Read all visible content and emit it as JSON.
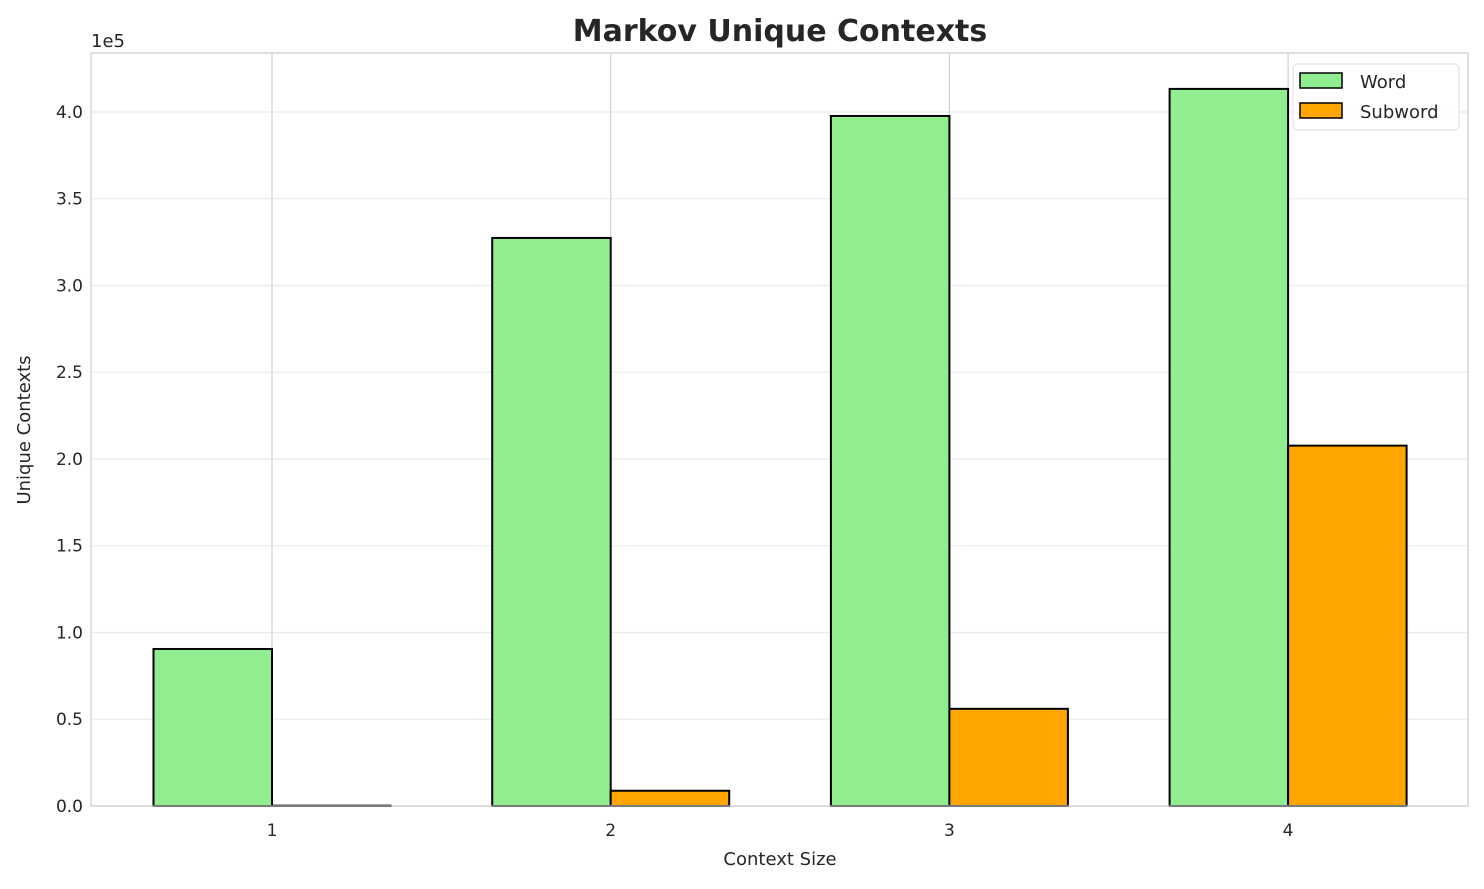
{
  "chart_data": {
    "type": "bar",
    "title": "Markov Unique Contexts",
    "xlabel": "Context Size",
    "ylabel": "Unique Contexts",
    "y_offset_label": "1e5",
    "categories": [
      "1",
      "2",
      "3",
      "4"
    ],
    "series": [
      {
        "name": "Word",
        "color": "#90ee90",
        "values": [
          90500,
          327400,
          397700,
          413300
        ]
      },
      {
        "name": "Subword",
        "color": "#ffa500",
        "values": [
          200,
          8800,
          56000,
          207700
        ]
      }
    ],
    "ylim": [
      0,
      434000
    ],
    "yticks": [
      0,
      50000,
      100000,
      150000,
      200000,
      250000,
      300000,
      350000,
      400000
    ],
    "ytick_labels": [
      "0.0",
      "0.5",
      "1.0",
      "1.5",
      "2.0",
      "2.5",
      "3.0",
      "3.5",
      "4.0"
    ],
    "grid": true,
    "legend": "top-right"
  }
}
